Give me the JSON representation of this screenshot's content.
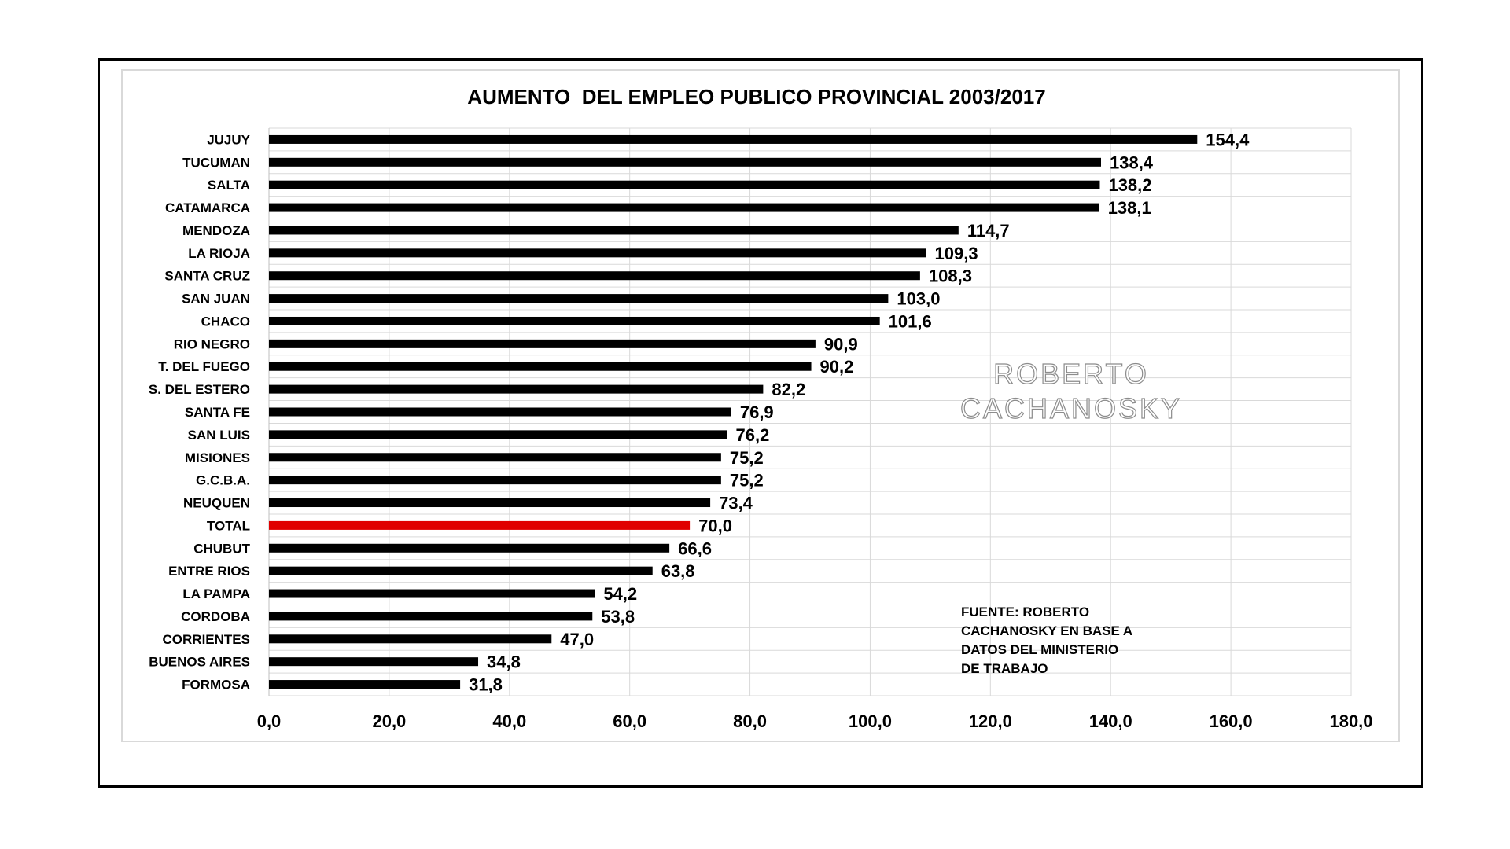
{
  "chart_data": {
    "type": "bar",
    "orientation": "horizontal",
    "title": "AUMENTO  DEL EMPLEO PUBLICO PROVINCIAL 2003/2017",
    "categories": [
      "JUJUY",
      "TUCUMAN",
      "SALTA",
      "CATAMARCA",
      "MENDOZA",
      "LA RIOJA",
      "SANTA CRUZ",
      "SAN JUAN",
      "CHACO",
      "RIO NEGRO",
      "T. DEL FUEGO",
      "S. DEL ESTERO",
      "SANTA FE",
      "SAN LUIS",
      "MISIONES",
      "G.C.B.A.",
      "NEUQUEN",
      "TOTAL",
      "CHUBUT",
      "ENTRE RIOS",
      "LA PAMPA",
      "CORDOBA",
      "CORRIENTES",
      "BUENOS AIRES",
      "FORMOSA"
    ],
    "values": [
      154.4,
      138.4,
      138.2,
      138.1,
      114.7,
      109.3,
      108.3,
      103.0,
      101.6,
      90.9,
      90.2,
      82.2,
      76.9,
      76.2,
      75.2,
      75.2,
      73.4,
      70.0,
      66.6,
      63.8,
      54.2,
      53.8,
      47.0,
      34.8,
      31.8
    ],
    "data_labels": [
      "154,4",
      "138,4",
      "138,2",
      "138,1",
      "114,7",
      "109,3",
      "108,3",
      "103,0",
      "101,6",
      "90,9",
      "90,2",
      "82,2",
      "76,9",
      "76,2",
      "75,2",
      "75,2",
      "73,4",
      "70,0",
      "66,6",
      "63,8",
      "54,2",
      "53,8",
      "47,0",
      "34,8",
      "31,8"
    ],
    "highlight_category": "TOTAL",
    "xlim": [
      0,
      180
    ],
    "x_ticks": [
      0,
      20,
      40,
      60,
      80,
      100,
      120,
      140,
      160,
      180
    ],
    "x_tick_labels": [
      "0,0",
      "20,0",
      "40,0",
      "60,0",
      "80,0",
      "100,0",
      "120,0",
      "140,0",
      "160,0",
      "180,0"
    ],
    "grid": true,
    "bar_color": "#000000",
    "highlight_color": "#e00000",
    "watermark_lines": [
      "ROBERTO",
      "CACHANOSKY"
    ],
    "source_note_lines": [
      "FUENTE: ROBERTO",
      "CACHANOSKY EN BASE A",
      "DATOS DEL MINISTERIO",
      "DE TRABAJO"
    ]
  }
}
